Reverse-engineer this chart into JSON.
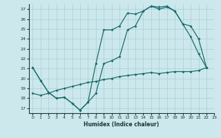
{
  "xlabel": "Humidex (Indice chaleur)",
  "bg_color": "#cce8ec",
  "grid_color": "#a8cdd4",
  "line_color": "#1a6b6b",
  "line1_x": [
    0,
    1,
    2,
    3,
    4,
    5,
    6,
    7,
    8,
    9,
    10,
    11,
    12,
    13,
    14,
    15,
    16,
    17,
    18,
    19,
    20,
    21,
    22
  ],
  "line1_y": [
    21.1,
    19.8,
    18.6,
    18.0,
    18.1,
    17.5,
    16.8,
    17.6,
    21.5,
    24.9,
    24.9,
    25.3,
    26.6,
    26.5,
    26.8,
    27.3,
    27.2,
    27.3,
    26.8,
    25.5,
    24.2,
    22.5,
    21.1
  ],
  "line2_x": [
    0,
    1,
    2,
    3,
    4,
    5,
    6,
    7,
    8,
    9,
    10,
    11,
    12,
    13,
    14,
    15,
    16,
    17,
    18,
    19,
    20,
    21,
    22
  ],
  "line2_y": [
    18.5,
    18.3,
    18.5,
    18.8,
    19.0,
    19.2,
    19.4,
    19.6,
    19.7,
    19.9,
    20.0,
    20.2,
    20.3,
    20.4,
    20.5,
    20.6,
    20.5,
    20.6,
    20.7,
    20.7,
    20.7,
    20.8,
    21.1
  ],
  "line3_x": [
    0,
    1,
    2,
    3,
    4,
    5,
    6,
    7,
    8,
    9,
    10,
    11,
    12,
    13,
    14,
    15,
    16,
    17,
    18,
    19,
    20,
    21,
    22
  ],
  "line3_y": [
    21.1,
    19.8,
    18.6,
    18.0,
    18.1,
    17.5,
    16.8,
    17.6,
    18.5,
    21.5,
    21.8,
    22.2,
    24.9,
    25.3,
    26.8,
    27.3,
    27.0,
    27.2,
    26.8,
    25.5,
    25.3,
    24.0,
    21.1
  ],
  "xlim": [
    -0.5,
    23.0
  ],
  "ylim": [
    16.5,
    27.5
  ],
  "yticks": [
    17,
    18,
    19,
    20,
    21,
    22,
    23,
    24,
    25,
    26,
    27
  ],
  "xticks": [
    0,
    1,
    2,
    3,
    4,
    5,
    6,
    7,
    8,
    9,
    10,
    11,
    12,
    13,
    14,
    15,
    16,
    17,
    18,
    19,
    20,
    21,
    22,
    23
  ]
}
